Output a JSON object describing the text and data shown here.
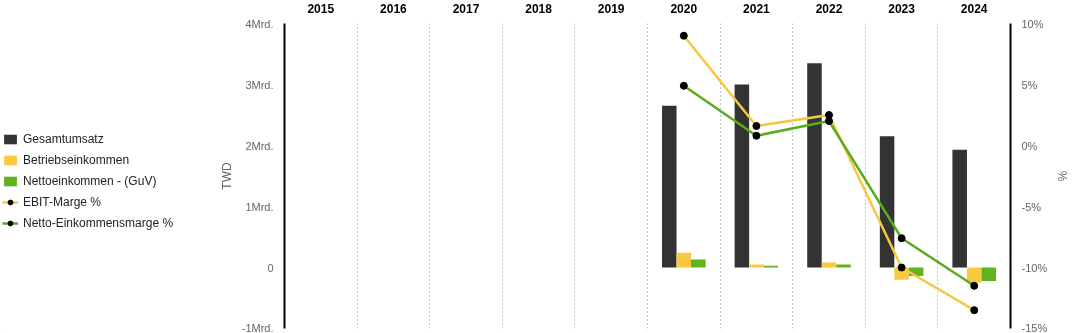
{
  "chart_data": {
    "type": "bar",
    "categories": [
      "2015",
      "2016",
      "2017",
      "2018",
      "2019",
      "2020",
      "2021",
      "2022",
      "2023",
      "2024"
    ],
    "ylabel": "TWD",
    "y2label": "%",
    "ylim": [
      -1,
      4
    ],
    "yticks": [
      {
        "value": -1,
        "label": "-1Mrd."
      },
      0,
      {
        "value": 1,
        "label": "1Mrd."
      },
      {
        "value": 2,
        "label": "2Mrd."
      },
      {
        "value": 3,
        "label": "3Mrd."
      },
      {
        "value": 4,
        "label": "4Mrd."
      }
    ],
    "y2lim": [
      -15,
      10
    ],
    "y2ticks": [
      {
        "value": -15,
        "label": "-15%"
      },
      {
        "value": -10,
        "label": "-10%"
      },
      {
        "value": -5,
        "label": "-5%"
      },
      {
        "value": 0,
        "label": "0%"
      },
      {
        "value": 5,
        "label": "5%"
      },
      {
        "value": 10,
        "label": "10%"
      }
    ],
    "grid": "x",
    "legend": "left",
    "series": [
      {
        "name": "Gesamtumsatz",
        "color": "#333333",
        "values": [
          null,
          null,
          null,
          null,
          null,
          2.65,
          3.0,
          3.35,
          2.15,
          1.93
        ]
      },
      {
        "name": "Betriebseinkommen",
        "color": "#f9c942",
        "values": [
          null,
          null,
          null,
          null,
          null,
          0.24,
          0.05,
          0.08,
          -0.2,
          -0.25
        ]
      },
      {
        "name": "Nettoeinkommen - (GuV)",
        "color": "#5fb31e",
        "values": [
          null,
          null,
          null,
          null,
          null,
          0.13,
          0.03,
          0.05,
          -0.14,
          -0.22
        ]
      },
      {
        "name": "EBIT-Marge %",
        "type": "line",
        "axis": "y2",
        "marker": "circle",
        "color": "#f5c842",
        "values": [
          null,
          null,
          null,
          null,
          null,
          9.0,
          1.6,
          2.5,
          -10.0,
          -13.5
        ]
      },
      {
        "name": "Netto-Einkommensmarge %",
        "type": "line",
        "axis": "y2",
        "marker": "circle",
        "color": "#5aab1e",
        "values": [
          null,
          null,
          null,
          null,
          null,
          4.9,
          0.8,
          2.0,
          -7.6,
          -11.5
        ]
      }
    ]
  }
}
